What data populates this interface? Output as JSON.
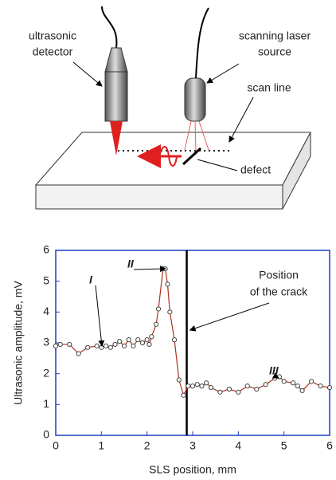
{
  "diagram": {
    "detector_label": [
      "ultrasonic",
      "detector"
    ],
    "laser_label": [
      "scanning laser",
      "source"
    ],
    "scan_label": "scan line",
    "defect_label": "defect"
  },
  "chart_data": {
    "type": "line",
    "x_label": "SLS position, mm",
    "y_label": "Ultrasonic amplitude, mV",
    "xlim": [
      0,
      6
    ],
    "ylim": [
      0,
      6
    ],
    "xticks": [
      0,
      1,
      2,
      3,
      4,
      5,
      6
    ],
    "yticks": [
      0,
      1,
      2,
      3,
      4,
      5,
      6
    ],
    "axis_color": "#1f3fbf",
    "crack_x": 2.87,
    "annotations": [
      {
        "text": "I"
      },
      {
        "text": "II"
      },
      {
        "text": "III"
      },
      {
        "text": [
          "Position",
          "of the crack"
        ]
      }
    ],
    "series": [
      {
        "color": "#b0301c",
        "x": [
          0,
          0.1,
          0.3,
          0.5,
          0.7,
          0.9,
          1.0,
          1.1,
          1.2,
          1.3,
          1.4,
          1.5,
          1.6,
          1.7,
          1.8,
          1.9,
          2.0,
          2.05,
          2.1,
          2.2,
          2.25,
          2.35,
          2.4,
          2.45,
          2.5,
          2.6,
          2.7,
          2.8,
          2.9,
          3.0,
          3.1,
          3.2,
          3.3,
          3.4,
          3.6,
          3.8,
          4.0,
          4.2,
          4.4,
          4.6,
          4.8,
          4.9,
          5.0,
          5.2,
          5.3,
          5.4,
          5.6,
          5.8,
          6.0
        ],
        "values": [
          2.9,
          2.95,
          2.95,
          2.65,
          2.85,
          2.9,
          2.85,
          2.9,
          2.85,
          2.95,
          3.05,
          2.9,
          3.1,
          2.9,
          3.1,
          3.0,
          3.1,
          2.95,
          3.2,
          3.6,
          4.1,
          5.4,
          5.4,
          4.9,
          4.0,
          3.1,
          1.8,
          1.3,
          1.6,
          1.6,
          1.65,
          1.6,
          1.7,
          1.55,
          1.4,
          1.5,
          1.4,
          1.6,
          1.5,
          1.65,
          1.85,
          1.9,
          1.75,
          1.7,
          1.6,
          1.45,
          1.75,
          1.6,
          1.55
        ]
      }
    ]
  }
}
